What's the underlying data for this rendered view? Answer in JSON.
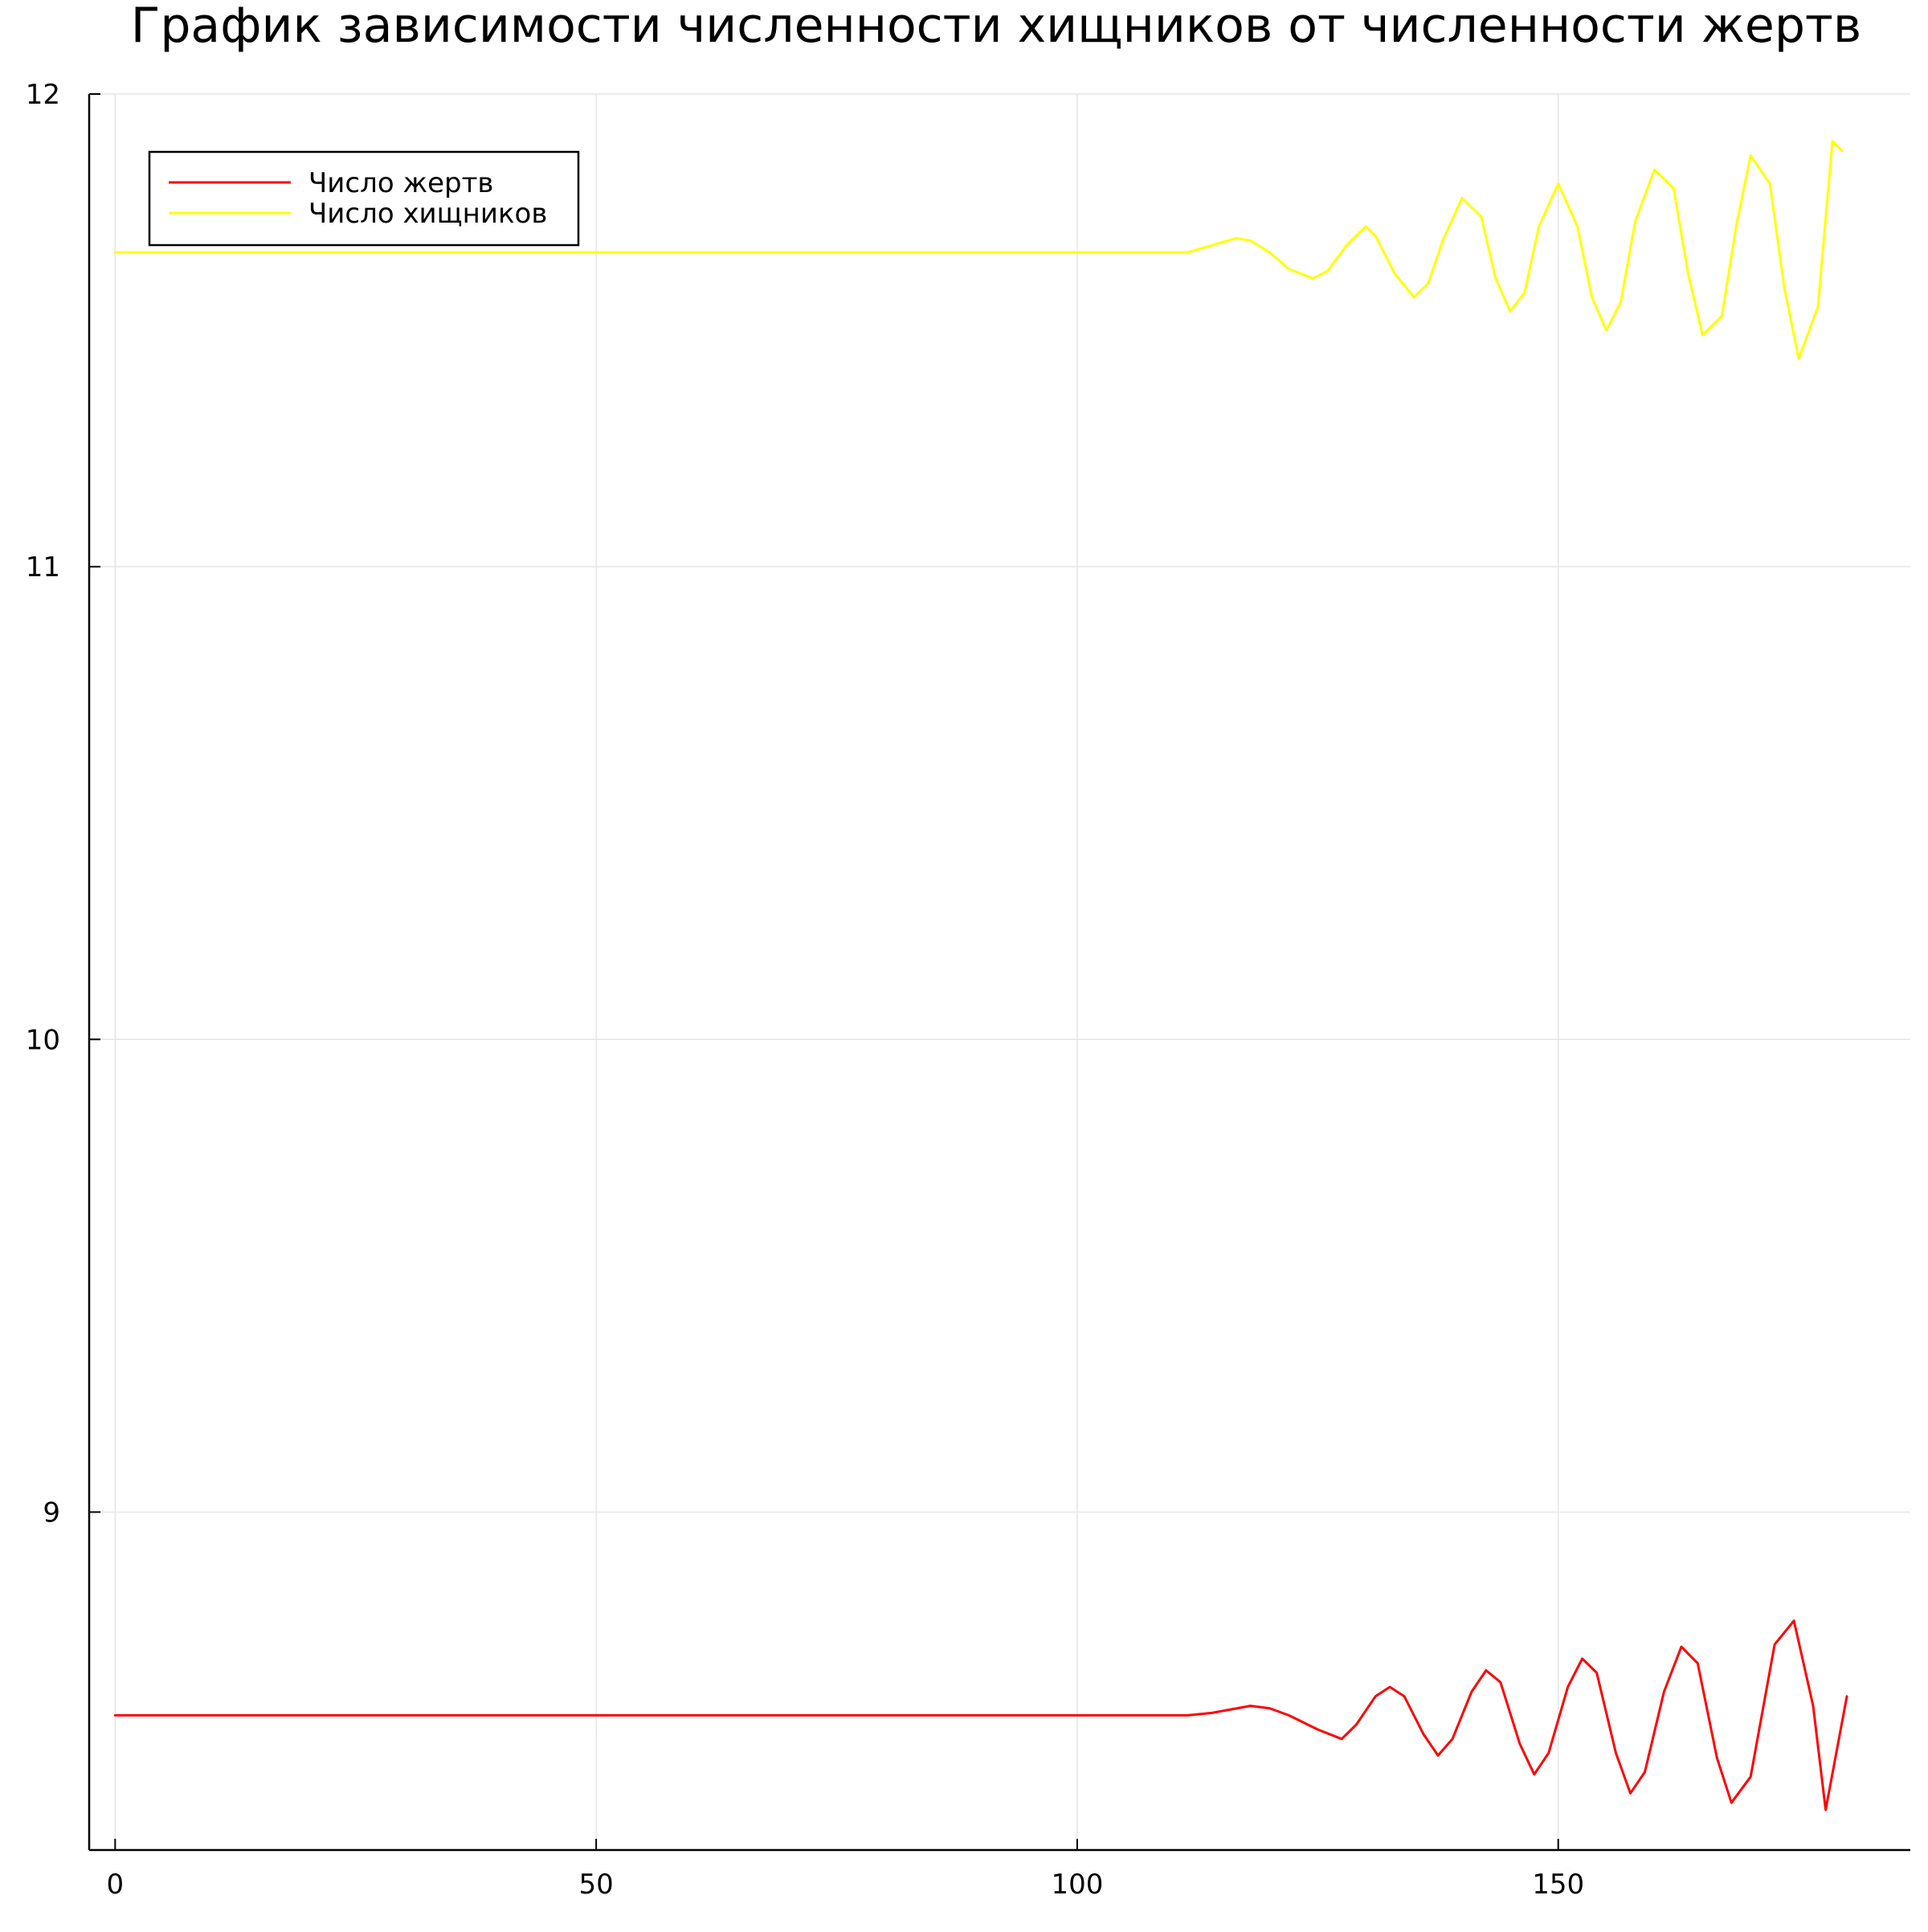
{
  "chart_data": {
    "type": "line",
    "title": "График зависимости численности хищников от численности жертв",
    "xlabel": "",
    "ylabel": "",
    "xlim": [
      -2.7,
      186.6
    ],
    "ylim": [
      8.285,
      12.0
    ],
    "xticks": [
      0,
      50,
      100,
      150
    ],
    "yticks": [
      9,
      10,
      11,
      12
    ],
    "grid": true,
    "legend_position": "top-left",
    "series": [
      {
        "name": "Число жертв",
        "color": "#ff0000",
        "x": [
          0,
          20,
          40,
          60,
          80,
          100,
          111.5,
          114,
          118,
          120,
          122,
          125,
          127.5,
          129,
          131,
          132.5,
          134,
          136,
          137.5,
          139,
          141,
          142.5,
          144,
          146,
          147.5,
          149,
          151,
          152.5,
          154,
          156,
          157.5,
          159,
          161,
          162.8,
          164.5,
          166.5,
          168,
          170,
          172.5,
          174.5,
          176.5,
          177.8,
          180
        ],
        "y": [
          8.57,
          8.57,
          8.57,
          8.57,
          8.57,
          8.57,
          8.57,
          8.575,
          8.59,
          8.585,
          8.57,
          8.54,
          8.52,
          8.55,
          8.61,
          8.63,
          8.61,
          8.53,
          8.485,
          8.52,
          8.62,
          8.665,
          8.64,
          8.51,
          8.445,
          8.49,
          8.63,
          8.69,
          8.66,
          8.49,
          8.405,
          8.45,
          8.62,
          8.715,
          8.68,
          8.48,
          8.385,
          8.44,
          8.72,
          8.77,
          8.59,
          8.37,
          8.61
        ]
      },
      {
        "name": "Число хищников",
        "color": "#ffff00",
        "x": [
          0,
          20,
          40,
          60,
          80,
          100,
          111.5,
          114,
          116.5,
          118,
          120,
          122,
          124.5,
          126,
          128,
          130,
          131,
          133,
          135,
          136.5,
          138,
          140,
          142,
          143.5,
          145,
          146.5,
          148,
          150,
          152,
          153.5,
          155,
          156.5,
          158,
          160,
          162,
          163.5,
          165,
          167,
          168.5,
          170,
          172,
          173.5,
          175,
          177,
          178.5,
          179.5
        ],
        "y": [
          11.665,
          11.665,
          11.665,
          11.665,
          11.665,
          11.665,
          11.665,
          11.68,
          11.695,
          11.69,
          11.665,
          11.63,
          11.61,
          11.625,
          11.68,
          11.72,
          11.7,
          11.62,
          11.57,
          11.6,
          11.69,
          11.78,
          11.74,
          11.61,
          11.54,
          11.58,
          11.72,
          11.81,
          11.72,
          11.57,
          11.5,
          11.56,
          11.73,
          11.84,
          11.8,
          11.62,
          11.49,
          11.53,
          11.72,
          11.87,
          11.81,
          11.59,
          11.44,
          11.55,
          11.9,
          11.88
        ]
      }
    ]
  }
}
